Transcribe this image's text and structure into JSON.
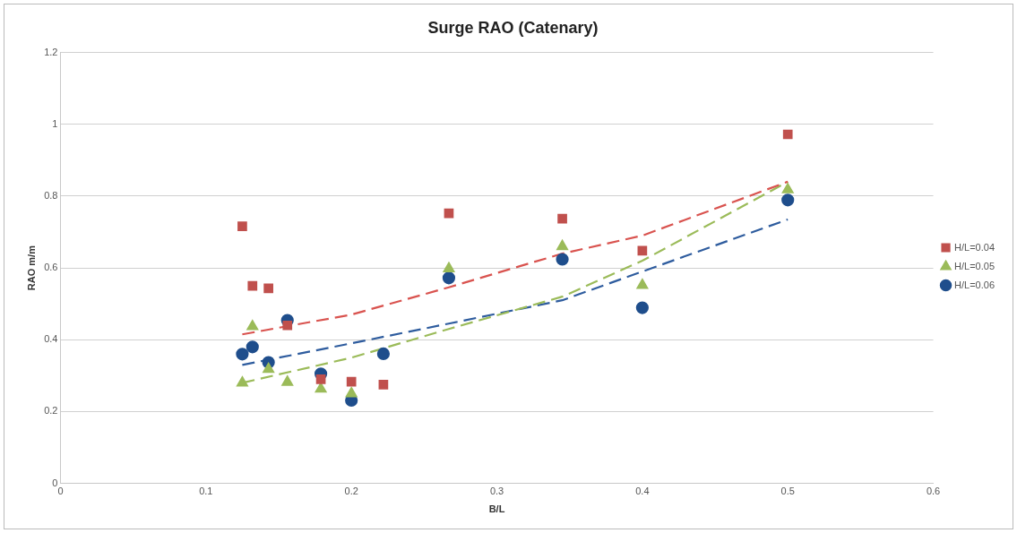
{
  "chart_data": {
    "type": "scatter",
    "title": "Surge RAO (Catenary)",
    "xlabel": "B/L",
    "ylabel": "RAO m/m",
    "xlim": [
      0,
      0.6
    ],
    "xticks": [
      0,
      0.1,
      0.2,
      0.3,
      0.4,
      0.5,
      0.6
    ],
    "ylim": [
      0,
      1.2
    ],
    "yticks": [
      0,
      0.2,
      0.4,
      0.6,
      0.8,
      1,
      1.2
    ],
    "grid": "y",
    "legend": "right",
    "series": [
      {
        "name": "H/L=0.04",
        "color": "#c0504d",
        "marker": "square",
        "x": [
          0.125,
          0.132,
          0.143,
          0.156,
          0.179,
          0.2,
          0.222,
          0.267,
          0.345,
          0.4,
          0.5
        ],
        "values": [
          0.716,
          0.55,
          0.543,
          0.44,
          0.29,
          0.283,
          0.275,
          0.752,
          0.737,
          0.648,
          0.972
        ]
      },
      {
        "name": "H/L=0.05",
        "color": "#9bbb59",
        "marker": "triangle",
        "x": [
          0.125,
          0.132,
          0.143,
          0.156,
          0.179,
          0.2,
          0.222,
          0.267,
          0.345,
          0.4,
          0.5
        ],
        "values": [
          0.28,
          0.437,
          0.318,
          0.282,
          0.263,
          0.25,
          null,
          0.598,
          0.66,
          0.552,
          0.818
        ]
      },
      {
        "name": "H/L=0.06",
        "color": "#1f4e8c",
        "marker": "circle",
        "x": [
          0.125,
          0.132,
          0.143,
          0.156,
          0.179,
          0.2,
          0.222,
          0.267,
          0.345,
          0.4,
          0.5
        ],
        "values": [
          0.36,
          0.38,
          0.337,
          0.454,
          0.305,
          0.231,
          0.361,
          0.572,
          0.624,
          0.489,
          0.789
        ]
      },
      {
        "type": "line",
        "color": "#d9534f",
        "marker": "none",
        "line_style": "dashed",
        "x": [
          0.125,
          0.2,
          0.267,
          0.345,
          0.4,
          0.5
        ],
        "values": [
          0.415,
          0.47,
          0.546,
          0.64,
          0.69,
          0.84
        ]
      },
      {
        "type": "line",
        "color": "#9bbb59",
        "marker": "none",
        "line_style": "dashed",
        "x": [
          0.125,
          0.2,
          0.267,
          0.345,
          0.4,
          0.5
        ],
        "values": [
          0.28,
          0.35,
          0.43,
          0.52,
          0.62,
          0.84
        ]
      },
      {
        "type": "line",
        "color": "#2e5c9e",
        "marker": "none",
        "line_style": "dashed",
        "x": [
          0.125,
          0.2,
          0.267,
          0.345,
          0.4,
          0.5
        ],
        "values": [
          0.33,
          0.39,
          0.445,
          0.51,
          0.59,
          0.735
        ]
      }
    ]
  }
}
